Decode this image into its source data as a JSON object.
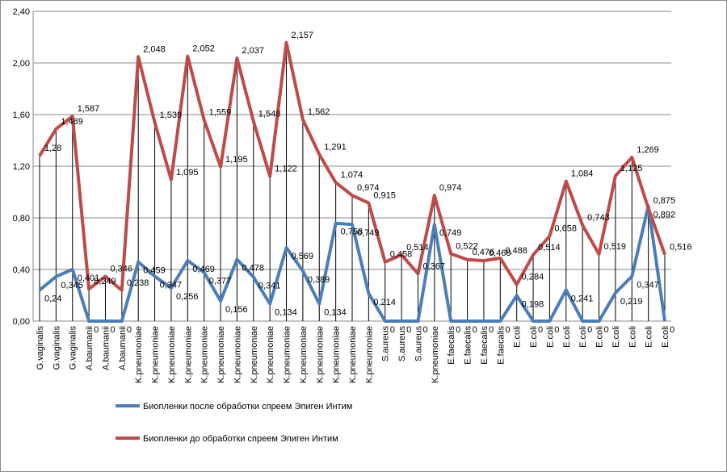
{
  "chart_data": {
    "type": "line",
    "categories": [
      "G.vaginalis",
      "G.vaginalis",
      "G.vaginalis",
      "A.baumanii",
      "A.baumanii",
      "A.baumanii",
      "K.pneumoniae",
      "K.pneumoniae",
      "K.pneumoniae",
      "K.pneumoniae",
      "K.pneumoniae",
      "K.pneumoniae",
      "K.pneumoniae",
      "K.pneumoniae",
      "K.pneumoniae",
      "K.pneumoniae",
      "K.pneumoniae",
      "K.pneumoniae",
      "K.pneumoniae",
      "K.pneumoniae",
      "K.pneumoniae",
      "S.aureus",
      "S.aureus",
      "S.aureus",
      "K.pneumoniae",
      "E.faecalis",
      "E.faecalis",
      "E.faecalis",
      "E.faecalis",
      "E.coli",
      "E.coli",
      "E.coli",
      "E.coli",
      "E.coli",
      "E.coli",
      "E.coli",
      "E.coli",
      "E.coli",
      "E.coli"
    ],
    "series": [
      {
        "name": "Биопленки после обработки спреем Эпиген Интим",
        "color": "#4a7ebb",
        "values": [
          0.24,
          0.345,
          0.401,
          0,
          0,
          0,
          0.459,
          0.347,
          0.256,
          0.469,
          0.377,
          0.156,
          0.478,
          0.341,
          0.134,
          0.569,
          0.389,
          0.134,
          0.758,
          0.749,
          0.214,
          0,
          0,
          0,
          0.749,
          0,
          0,
          0,
          0,
          0.198,
          0,
          0,
          0.241,
          0,
          0,
          0.219,
          0.347,
          0.892,
          0
        ],
        "value_labels": [
          "0,24",
          "0,345",
          "0,401",
          "0",
          "0",
          "0",
          "0,459",
          "0,347",
          "0,256",
          "0,469",
          "0,377",
          "0,156",
          "0,478",
          "0,341",
          "0,134",
          "0,569",
          "0,389",
          "0,134",
          "0,758",
          "0,749",
          "0,214",
          "0",
          "0",
          "0",
          "0,749",
          "0",
          "0",
          "0",
          "0",
          "0,198",
          "0",
          "0",
          "0,241",
          "0",
          "0",
          "0,219",
          "0,347",
          "0,892",
          "0"
        ]
      },
      {
        "name": "Биопленки до обработки спреем Эпиген Интим",
        "color": "#be4b48",
        "values": [
          1.28,
          1.489,
          1.587,
          0.249,
          0.346,
          0.238,
          2.048,
          1.539,
          1.095,
          2.052,
          1.559,
          1.195,
          2.037,
          1.548,
          1.122,
          2.157,
          1.562,
          1.291,
          1.074,
          0.974,
          0.915,
          0.458,
          0.514,
          0.367,
          0.974,
          0.522,
          0.476,
          0.468,
          0.488,
          0.284,
          0.514,
          0.658,
          1.084,
          0.743,
          0.519,
          1.125,
          1.269,
          0.875,
          0.516
        ],
        "value_labels": [
          "1,28",
          "1,489",
          "1,587",
          "0,249",
          "0,346",
          "0,238",
          "2,048",
          "1,539",
          "1,095",
          "2,052",
          "1,559",
          "1,195",
          "2,037",
          "1,548",
          "1,122",
          "2,157",
          "1,562",
          "1,291",
          "1,074",
          "0,974",
          "0,915",
          "0,458",
          "0,514",
          "0,367",
          "0,974",
          "0,522",
          "0,476",
          "0,468",
          "0,488",
          "0,284",
          "0,514",
          "0,658",
          "1,084",
          "0,743",
          "0,519",
          "1,125",
          "1,269",
          "0,875",
          "0,516"
        ]
      }
    ],
    "ylim": [
      0,
      2.4
    ],
    "yticks": [
      {
        "value": 0,
        "label": "0,00"
      },
      {
        "value": 0.4,
        "label": "0,40"
      },
      {
        "value": 0.8,
        "label": "0,80"
      },
      {
        "value": 1.2,
        "label": "1,20"
      },
      {
        "value": 1.6,
        "label": "1,60"
      },
      {
        "value": 2.0,
        "label": "2,00"
      },
      {
        "value": 2.4,
        "label": "2,40"
      }
    ],
    "grid": true,
    "drop_lines": true
  }
}
